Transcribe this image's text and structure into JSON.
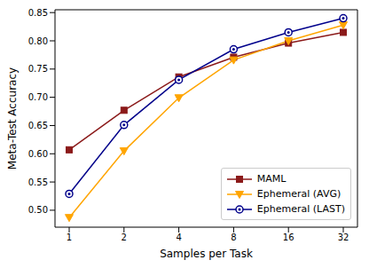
{
  "chart_data": {
    "type": "line",
    "x_label": "Samples per Task",
    "y_label": "Meta-Test Accuracy",
    "categories": [
      "1",
      "2",
      "4",
      "8",
      "16",
      "32"
    ],
    "series": [
      {
        "name": "MAML",
        "color": "#8b1a1a",
        "marker": "square",
        "values": [
          0.607,
          0.677,
          0.736,
          0.771,
          0.796,
          0.815
        ]
      },
      {
        "name": "Ephemeral (AVG)",
        "color": "#ffa500",
        "marker": "triangle_down",
        "values": [
          0.487,
          0.605,
          0.699,
          0.766,
          0.8,
          0.828
        ]
      },
      {
        "name": "Ephemeral (LAST)",
        "color": "#00008b",
        "marker": "circle",
        "values": [
          0.529,
          0.651,
          0.731,
          0.785,
          0.815,
          0.84
        ]
      }
    ],
    "ylim": [
      0.47,
      0.855
    ],
    "yticks": [
      {
        "value": 0.5,
        "label": "0.50"
      },
      {
        "value": 0.55,
        "label": "0.55"
      },
      {
        "value": 0.6,
        "label": "0.60"
      },
      {
        "value": 0.65,
        "label": "0.65"
      },
      {
        "value": 0.7,
        "label": "0.70"
      },
      {
        "value": 0.75,
        "label": "0.75"
      },
      {
        "value": 0.8,
        "label": "0.80"
      },
      {
        "value": 0.85,
        "label": "0.85"
      }
    ],
    "legend": "lower right",
    "grid": false
  }
}
